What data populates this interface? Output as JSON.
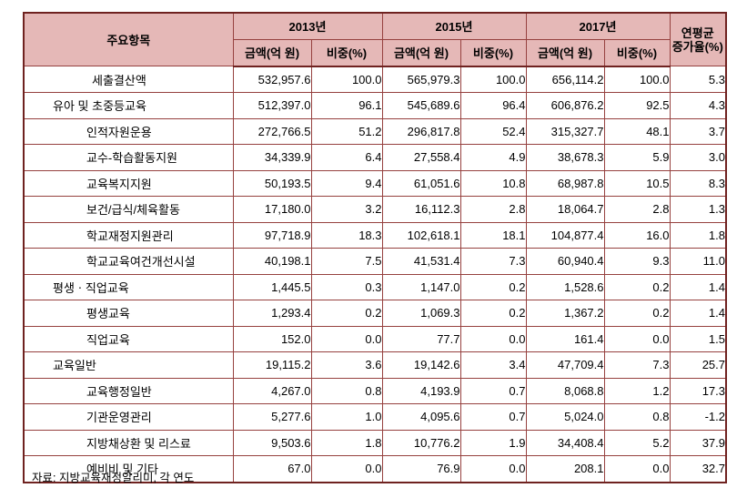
{
  "colors": {
    "header_bg": "#e5b8b7",
    "border": "#96413f",
    "border_dark": "#6f2220",
    "text": "#000000"
  },
  "table": {
    "header": {
      "main_col": "주요항목",
      "year_groups": [
        {
          "year": "2013년",
          "amount_label": "금액(억 원)",
          "ratio_label": "비중(%)"
        },
        {
          "year": "2015년",
          "amount_label": "금액(억 원)",
          "ratio_label": "비중(%)"
        },
        {
          "year": "2017년",
          "amount_label": "금액(억 원)",
          "ratio_label": "비중(%)"
        }
      ],
      "avg_line1": "연평균",
      "avg_line2": "증가율(%)"
    },
    "rows": [
      {
        "label": "세출결산액",
        "level": 0,
        "values": [
          "532,957.6",
          "100.0",
          "565,979.3",
          "100.0",
          "656,114.2",
          "100.0",
          "5.3"
        ]
      },
      {
        "label": "유아 및 초중등교육",
        "level": 1,
        "values": [
          "512,397.0",
          "96.1",
          "545,689.6",
          "96.4",
          "606,876.2",
          "92.5",
          "4.3"
        ]
      },
      {
        "label": "인적자원운용",
        "level": 2,
        "values": [
          "272,766.5",
          "51.2",
          "296,817.8",
          "52.4",
          "315,327.7",
          "48.1",
          "3.7"
        ]
      },
      {
        "label": "교수-학습활동지원",
        "level": 2,
        "values": [
          "34,339.9",
          "6.4",
          "27,558.4",
          "4.9",
          "38,678.3",
          "5.9",
          "3.0"
        ]
      },
      {
        "label": "교육복지지원",
        "level": 2,
        "values": [
          "50,193.5",
          "9.4",
          "61,051.6",
          "10.8",
          "68,987.8",
          "10.5",
          "8.3"
        ]
      },
      {
        "label": "보건/급식/체육활동",
        "level": 2,
        "values": [
          "17,180.0",
          "3.2",
          "16,112.3",
          "2.8",
          "18,064.7",
          "2.8",
          "1.3"
        ]
      },
      {
        "label": "학교재정지원관리",
        "level": 2,
        "values": [
          "97,718.9",
          "18.3",
          "102,618.1",
          "18.1",
          "104,877.4",
          "16.0",
          "1.8"
        ]
      },
      {
        "label": "학교교육여건개선시설",
        "level": 2,
        "values": [
          "40,198.1",
          "7.5",
          "41,531.4",
          "7.3",
          "60,940.4",
          "9.3",
          "11.0"
        ]
      },
      {
        "label": "평생ㆍ직업교육",
        "level": 1,
        "values": [
          "1,445.5",
          "0.3",
          "1,147.0",
          "0.2",
          "1,528.6",
          "0.2",
          "1.4"
        ]
      },
      {
        "label": "평생교육",
        "level": 2,
        "values": [
          "1,293.4",
          "0.2",
          "1,069.3",
          "0.2",
          "1,367.2",
          "0.2",
          "1.4"
        ]
      },
      {
        "label": "직업교육",
        "level": 2,
        "values": [
          "152.0",
          "0.0",
          "77.7",
          "0.0",
          "161.4",
          "0.0",
          "1.5"
        ]
      },
      {
        "label": "교육일반",
        "level": 1,
        "values": [
          "19,115.2",
          "3.6",
          "19,142.6",
          "3.4",
          "47,709.4",
          "7.3",
          "25.7"
        ]
      },
      {
        "label": "교육행정일반",
        "level": 2,
        "values": [
          "4,267.0",
          "0.8",
          "4,193.9",
          "0.7",
          "8,068.8",
          "1.2",
          "17.3"
        ]
      },
      {
        "label": "기관운영관리",
        "level": 2,
        "values": [
          "5,277.6",
          "1.0",
          "4,095.6",
          "0.7",
          "5,024.0",
          "0.8",
          "-1.2"
        ]
      },
      {
        "label": "지방채상환 및 리스료",
        "level": 2,
        "values": [
          "9,503.6",
          "1.8",
          "10,776.2",
          "1.9",
          "34,408.4",
          "5.2",
          "37.9"
        ]
      },
      {
        "label": "예비비 및 기타",
        "level": 2,
        "values": [
          "67.0",
          "0.0",
          "76.9",
          "0.0",
          "208.1",
          "0.0",
          "32.7"
        ]
      }
    ]
  },
  "footer": {
    "source": "자료: 지방교육재정알리미, 각 연도"
  }
}
